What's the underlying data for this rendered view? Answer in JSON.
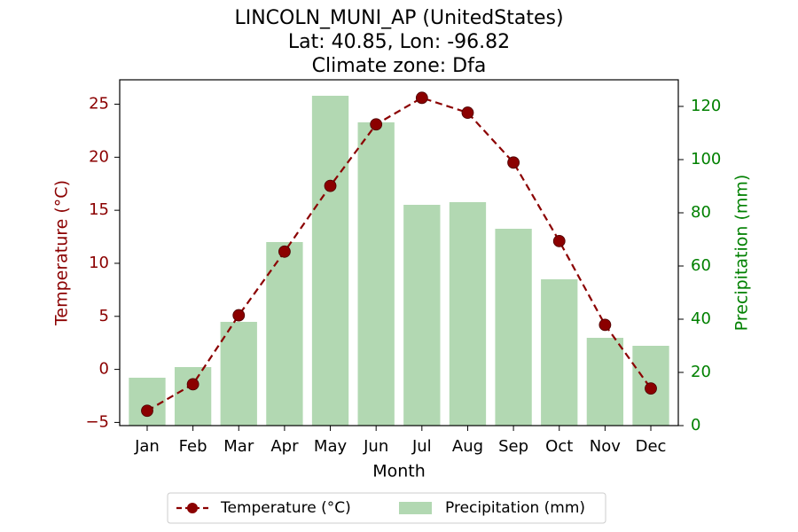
{
  "chart_data": {
    "type": "bar+line",
    "title_lines": [
      "LINCOLN_MUNI_AP (UnitedStates)",
      "Lat: 40.85, Lon: -96.82",
      "Climate zone: Dfa"
    ],
    "xlabel": "Month",
    "ylabel_left": "Temperature (°C)",
    "ylabel_right": "Precipitation (mm)",
    "categories": [
      "Jan",
      "Feb",
      "Mar",
      "Apr",
      "May",
      "Jun",
      "Jul",
      "Aug",
      "Sep",
      "Oct",
      "Nov",
      "Dec"
    ],
    "temperature": {
      "name": "Temperature (°C)",
      "color": "#8b0000",
      "values": [
        -3.9,
        -1.4,
        5.1,
        11.1,
        17.3,
        23.1,
        25.6,
        24.2,
        19.5,
        12.1,
        4.2,
        -1.8
      ]
    },
    "precipitation": {
      "name": "Precipitation (mm)",
      "color": "#b2d8b2",
      "values": [
        18,
        22,
        39,
        69,
        124,
        114,
        83,
        84,
        74,
        55,
        33,
        30
      ]
    },
    "ylim_left": [
      -5.3,
      27.3
    ],
    "yticks_left": [
      -5,
      0,
      5,
      10,
      15,
      20,
      25
    ],
    "ylim_right": [
      0,
      130
    ],
    "yticks_right": [
      0,
      20,
      40,
      60,
      80,
      100,
      120
    ],
    "left_axis_color": "#8b0000",
    "right_axis_color": "#008000",
    "grid": false,
    "legend_placement": "bottom-center"
  }
}
